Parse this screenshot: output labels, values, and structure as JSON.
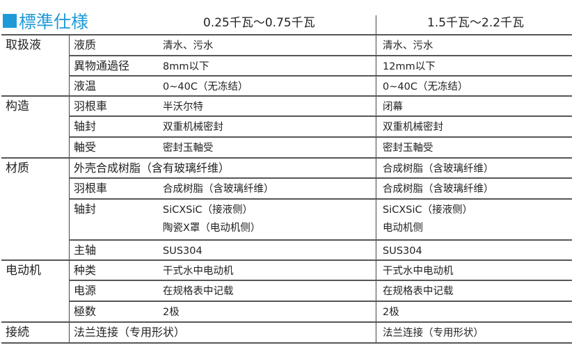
{
  "title": "標準仕様",
  "columns": [
    "0.25千瓦～0.75千瓦",
    "1.5千瓦～2.2千瓦"
  ],
  "groups": [
    {
      "category": "取扱液",
      "rows": [
        {
          "item": "液质",
          "v1": [
            "清水、污水"
          ],
          "v2": [
            "清水、污水"
          ]
        },
        {
          "item": "異物通過径",
          "v1": [
            "8mm以下"
          ],
          "v2": [
            "12mm以下"
          ]
        },
        {
          "item": "液温",
          "v1": [
            "0~40C（无冻结）"
          ],
          "v2": [
            "0~40C（无冻结）"
          ]
        }
      ]
    },
    {
      "category": "构造",
      "rows": [
        {
          "item": "羽根車",
          "v1": [
            "半沃尔特"
          ],
          "v2": [
            "闭幕"
          ]
        },
        {
          "item": "轴封",
          "v1": [
            "双重机械密封"
          ],
          "v2": [
            "双重机械密封"
          ]
        },
        {
          "item": "軸受",
          "v1": [
            "密封玉軸受"
          ],
          "v2": [
            "密封玉軸受"
          ]
        }
      ]
    },
    {
      "category": "材质",
      "rows": [
        {
          "item": "外壳合成树脂（含有玻璃纤维）",
          "v1": [],
          "v2": [
            "合成树脂（含玻璃纤维）"
          ]
        },
        {
          "item": "羽根車",
          "v1": [
            "合成树脂（含玻璃纤维）"
          ],
          "v2": [
            "合成树脂（含玻璃纤维）"
          ]
        },
        {
          "item": "轴封",
          "v1": [
            "SiCXSiC（接液侧）",
            "陶瓷X罩（电动机侧）"
          ],
          "v2": [
            "SiCXSiC（接液侧）",
            "电动机侧"
          ]
        },
        {
          "item": "主轴",
          "v1": [
            "SUS304"
          ],
          "v2": [
            "SUS304"
          ]
        }
      ]
    },
    {
      "category": "电动机",
      "rows": [
        {
          "item": "种类",
          "v1": [
            "干式水中电动机"
          ],
          "v2": [
            "干式水中电动机"
          ]
        },
        {
          "item": "电源",
          "v1": [
            "在规格表中记载"
          ],
          "v2": [
            "在规格表中记载"
          ]
        },
        {
          "item": "極数",
          "v1": [
            "2极"
          ],
          "v2": [
            "2极"
          ]
        }
      ]
    },
    {
      "category": "接続",
      "rows": [
        {
          "item": "法兰连接（专用形状）",
          "v1": [],
          "v2": [
            "法兰连接（专用形状）"
          ]
        }
      ]
    }
  ],
  "colors": {
    "accent": "#1f9ad8"
  }
}
